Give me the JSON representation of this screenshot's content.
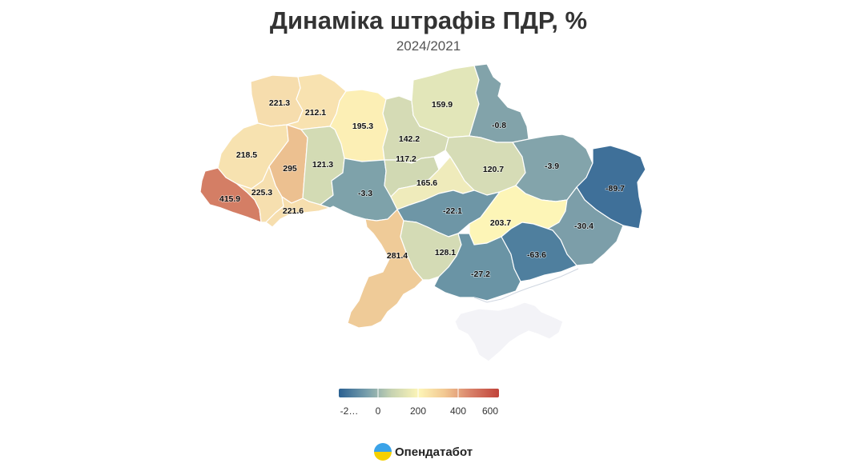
{
  "header": {
    "title": "Динаміка штрафів ПДР, %",
    "subtitle": "2024/2021"
  },
  "colors": {
    "scale": [
      "#2b6192",
      "#7aa0ac",
      "#c7d3b1",
      "#fdf5b7",
      "#f2c892",
      "#d9826a",
      "#c0433a"
    ],
    "no_data": "#f3f3f7",
    "border": "#ffffff"
  },
  "legend": {
    "ticks": [
      "-2…",
      "0",
      "200",
      "400",
      "600"
    ]
  },
  "regions": [
    {
      "name": "Volyn",
      "value": "221.3"
    },
    {
      "name": "Rivne",
      "value": "212.1"
    },
    {
      "name": "Zhytomyr",
      "value": "195.3"
    },
    {
      "name": "Kyiv",
      "value": "142.2"
    },
    {
      "name": "Chernihiv",
      "value": "159.9"
    },
    {
      "name": "Sumy",
      "value": "-0.8"
    },
    {
      "name": "Lviv",
      "value": "218.5"
    },
    {
      "name": "Ternopil",
      "value": "295"
    },
    {
      "name": "Khmelnytskyi",
      "value": "121.3"
    },
    {
      "name": "Cherkasy",
      "value": "117.2"
    },
    {
      "name": "Poltava",
      "value": "120.7"
    },
    {
      "name": "Kharkiv",
      "value": "-3.9"
    },
    {
      "name": "Luhansk",
      "value": "-89.7"
    },
    {
      "name": "Zakarpattia",
      "value": "415.9"
    },
    {
      "name": "Ivano-Frankivsk",
      "value": "225.3"
    },
    {
      "name": "Chernivtsi",
      "value": "221.6"
    },
    {
      "name": "Vinnytsia",
      "value": "-3.3"
    },
    {
      "name": "Kirovohrad",
      "value": "165.6"
    },
    {
      "name": "Dnipropetrovsk",
      "value": "-22.1"
    },
    {
      "name": "Zaporizhzhia",
      "value": "203.7"
    },
    {
      "name": "Donetsk",
      "value": "-30.4"
    },
    {
      "name": "Odesa",
      "value": "281.4"
    },
    {
      "name": "Mykolaiv",
      "value": "128.1"
    },
    {
      "name": "Kherson",
      "value": "-27.2"
    },
    {
      "name": "Zaporizhzhia-South",
      "value": "-63.6"
    }
  ],
  "brand": {
    "name": "Опендатабот"
  }
}
